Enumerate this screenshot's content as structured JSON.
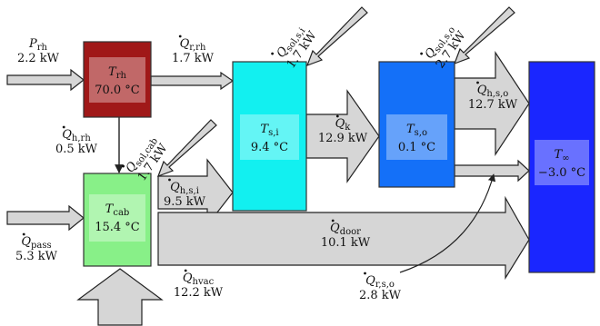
{
  "nodes": [
    {
      "id": "rh",
      "name": "T",
      "sub": "rh",
      "value": "70.0 °C",
      "color": "#a01818"
    },
    {
      "id": "cab",
      "name": "T",
      "sub": "cab",
      "value": "15.4 °C",
      "color": "#88f088"
    },
    {
      "id": "si",
      "name": "T",
      "sub": "s,i",
      "value": "9.4 °C",
      "color": "#12f0f0"
    },
    {
      "id": "so",
      "name": "T",
      "sub": "s,o",
      "value": "0.1 °C",
      "color": "#1470f8"
    },
    {
      "id": "inf",
      "name": "T",
      "sub": "∞",
      "value": "−3.0 °C",
      "color": "#1a26ff"
    }
  ],
  "flows": [
    {
      "id": "p_rh",
      "name": "P",
      "sub": "rh",
      "value": "2.2 kW",
      "dot": false
    },
    {
      "id": "q_r_rh",
      "name": "Q",
      "sub": "r,rh",
      "value": "1.7 kW",
      "dot": true
    },
    {
      "id": "q_h_rh",
      "name": "Q",
      "sub": "h,rh",
      "value": "0.5 kW",
      "dot": true
    },
    {
      "id": "q_sol_si",
      "name": "Q",
      "sub": "sol,s,i",
      "value": "1.7 kW",
      "dot": true
    },
    {
      "id": "q_sol_so",
      "name": "Q",
      "sub": "sol,s,o",
      "value": "2.7 kW",
      "dot": true
    },
    {
      "id": "q_sol_cab",
      "name": "Q",
      "sub": "sol,cab",
      "value": "1.7 kW",
      "dot": true
    },
    {
      "id": "q_k",
      "name": "Q",
      "sub": "k",
      "value": "12.9 kW",
      "dot": true
    },
    {
      "id": "q_h_so",
      "name": "Q",
      "sub": "h,s,o",
      "value": "12.7 kW",
      "dot": true
    },
    {
      "id": "q_h_si",
      "name": "Q",
      "sub": "h,s,i",
      "value": "9.5 kW",
      "dot": true
    },
    {
      "id": "q_pass",
      "name": "Q",
      "sub": "pass",
      "value": "5.3 kW",
      "dot": true
    },
    {
      "id": "q_door",
      "name": "Q",
      "sub": "door",
      "value": "10.1 kW",
      "dot": true
    },
    {
      "id": "q_hvac",
      "name": "Q",
      "sub": "hvac",
      "value": "12.2 kW",
      "dot": true
    },
    {
      "id": "q_r_so",
      "name": "Q",
      "sub": "r,s,o",
      "value": "2.8 kW",
      "dot": true
    }
  ]
}
